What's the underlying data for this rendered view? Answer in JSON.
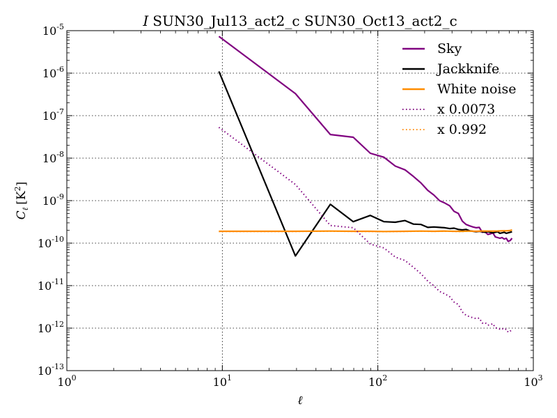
{
  "chart_data": {
    "type": "line",
    "title_prefix": "I",
    "title": "SUN30_Jul13_act2_c SUN30_Oct13_act2_c",
    "xlabel_symbol": "ℓ",
    "ylabel_symbol": "C",
    "ylabel_subscript": "ℓ",
    "ylabel_unit": "[K",
    "ylabel_unit_exp": "2",
    "ylabel_unit_close": "]",
    "xscale": "log",
    "yscale": "log",
    "xlim": [
      1,
      1000
    ],
    "ylim": [
      1e-13,
      1e-05
    ],
    "grid": true,
    "legend_position": "top-right",
    "x_ticks": [
      {
        "base": "10",
        "exp": "0",
        "value": 1
      },
      {
        "base": "10",
        "exp": "1",
        "value": 10
      },
      {
        "base": "10",
        "exp": "2",
        "value": 100
      },
      {
        "base": "10",
        "exp": "3",
        "value": 1000
      }
    ],
    "y_ticks": [
      {
        "base": "10",
        "exp": "-13",
        "value": 1e-13
      },
      {
        "base": "10",
        "exp": "-12",
        "value": 1e-12
      },
      {
        "base": "10",
        "exp": "-11",
        "value": 1e-11
      },
      {
        "base": "10",
        "exp": "-10",
        "value": 1e-10
      },
      {
        "base": "10",
        "exp": "-9",
        "value": 1e-09
      },
      {
        "base": "10",
        "exp": "-8",
        "value": 1e-08
      },
      {
        "base": "10",
        "exp": "-7",
        "value": 1e-07
      },
      {
        "base": "10",
        "exp": "-6",
        "value": 1e-06
      },
      {
        "base": "10",
        "exp": "-5",
        "value": 1e-05
      }
    ],
    "series": [
      {
        "name": "Sky",
        "color": "#800080",
        "style": "solid",
        "x": [
          9.5,
          29.5,
          49.5,
          69.5,
          89.5,
          109.5,
          129.5,
          149.5,
          169.5,
          189.5,
          209.5,
          229.5,
          249.5,
          269.5,
          289.5,
          309.5,
          329.5,
          349.5,
          369.5,
          389.5,
          409.5,
          429.5,
          449.5,
          469.5,
          489.5,
          509.5,
          529.5,
          549.5,
          569.5,
          589.5,
          609.5,
          629.5,
          649.5,
          669.5,
          689.5,
          709.5,
          729.5
        ],
        "y": [
          7.3e-06,
          3.3e-07,
          3.6e-08,
          3.1e-08,
          1.3e-08,
          1.05e-08,
          6.5e-09,
          5.3e-09,
          3.7e-09,
          2.6e-09,
          1.75e-09,
          1.35e-09,
          1e-09,
          8.8e-10,
          7.6e-10,
          5.6e-10,
          5e-10,
          3.3e-10,
          2.75e-10,
          2.55e-10,
          2.4e-10,
          2.3e-10,
          2.35e-10,
          1.8e-10,
          1.85e-10,
          1.6e-10,
          1.65e-10,
          1.75e-10,
          1.4e-10,
          1.35e-10,
          1.3e-10,
          1.35e-10,
          1.25e-10,
          1.3e-10,
          1.1e-10,
          1.15e-10,
          1.3e-10
        ]
      },
      {
        "name": "Jackknife",
        "color": "#000000",
        "style": "solid",
        "x": [
          9.5,
          29.5,
          49.5,
          69.5,
          89.5,
          109.5,
          129.5,
          149.5,
          169.5,
          189.5,
          209.5,
          229.5,
          249.5,
          269.5,
          289.5,
          309.5,
          329.5,
          349.5,
          369.5,
          389.5,
          409.5,
          429.5,
          449.5,
          469.5,
          489.5,
          509.5,
          529.5,
          549.5,
          569.5,
          589.5,
          609.5,
          629.5,
          649.5,
          669.5,
          689.5,
          709.5,
          729.5
        ],
        "y": [
          1.1e-06,
          5e-11,
          8.2e-10,
          3.2e-10,
          4.5e-10,
          3.2e-10,
          3.1e-10,
          3.4e-10,
          2.8e-10,
          2.75e-10,
          2.35e-10,
          2.4e-10,
          2.35e-10,
          2.3e-10,
          2.2e-10,
          2.25e-10,
          2.1e-10,
          2.05e-10,
          2.1e-10,
          1.95e-10,
          1.9e-10,
          1.85e-10,
          1.9e-10,
          1.85e-10,
          1.8e-10,
          1.85e-10,
          1.8e-10,
          1.75e-10,
          1.8e-10,
          1.85e-10,
          1.7e-10,
          1.75e-10,
          1.8e-10,
          1.7e-10,
          1.75e-10,
          1.8e-10,
          1.85e-10
        ]
      },
      {
        "name": "White noise",
        "color": "#FF8C00",
        "style": "solid",
        "x": [
          9.5,
          29.5,
          49.5,
          69.5,
          89.5,
          109.5,
          149.5,
          189.5,
          229.5,
          269.5,
          309.5,
          349.5,
          389.5,
          429.5,
          469.5,
          509.5,
          549.5,
          589.5,
          629.5,
          669.5,
          709.5,
          729.5
        ],
        "y": [
          1.9e-10,
          1.9e-10,
          1.92e-10,
          1.9e-10,
          1.9e-10,
          1.88e-10,
          1.9e-10,
          1.92e-10,
          1.9e-10,
          1.92e-10,
          1.9e-10,
          1.9e-10,
          1.92e-10,
          1.9e-10,
          1.93e-10,
          1.92e-10,
          1.92e-10,
          1.93e-10,
          1.95e-10,
          1.95e-10,
          1.98e-10,
          2.05e-10
        ]
      },
      {
        "name": "x 0.0073",
        "color": "#800080",
        "style": "dotted",
        "x": [
          9.5,
          29.5,
          49.5,
          69.5,
          89.5,
          109.5,
          129.5,
          149.5,
          169.5,
          189.5,
          209.5,
          229.5,
          249.5,
          269.5,
          289.5,
          309.5,
          329.5,
          349.5,
          369.5,
          389.5,
          409.5,
          429.5,
          449.5,
          469.5,
          489.5,
          509.5,
          529.5,
          549.5,
          569.5,
          589.5,
          609.5,
          629.5,
          649.5,
          669.5,
          689.5,
          709.5,
          729.5
        ],
        "y": [
          5.3e-08,
          2.4e-09,
          2.6e-10,
          2.3e-10,
          9.5e-11,
          7.7e-11,
          4.7e-11,
          3.9e-11,
          2.7e-11,
          1.9e-11,
          1.28e-11,
          9.9e-12,
          7.3e-12,
          6.4e-12,
          5.5e-12,
          4.1e-12,
          3.6e-12,
          2.4e-12,
          2e-12,
          1.86e-12,
          1.75e-12,
          1.68e-12,
          1.72e-12,
          1.31e-12,
          1.35e-12,
          1.17e-12,
          1.2e-12,
          1.28e-12,
          1.02e-12,
          9.9e-13,
          9.5e-13,
          9.9e-13,
          9.1e-13,
          9.5e-13,
          8e-13,
          8.4e-13,
          9.5e-13
        ]
      },
      {
        "name": "x 0.992",
        "color": "#FF8C00",
        "style": "dotted",
        "x": [
          9.5,
          29.5,
          49.5,
          69.5,
          89.5,
          109.5,
          149.5,
          189.5,
          229.5,
          269.5,
          309.5,
          349.5,
          389.5,
          429.5,
          469.5,
          509.5,
          549.5,
          589.5,
          629.5,
          669.5,
          709.5,
          729.5
        ],
        "y": [
          1.885e-10,
          1.885e-10,
          1.905e-10,
          1.885e-10,
          1.885e-10,
          1.865e-10,
          1.885e-10,
          1.905e-10,
          1.885e-10,
          1.905e-10,
          1.885e-10,
          1.885e-10,
          1.905e-10,
          1.885e-10,
          1.915e-10,
          1.905e-10,
          1.905e-10,
          1.915e-10,
          1.935e-10,
          1.935e-10,
          1.965e-10,
          2.03e-10
        ]
      }
    ]
  }
}
